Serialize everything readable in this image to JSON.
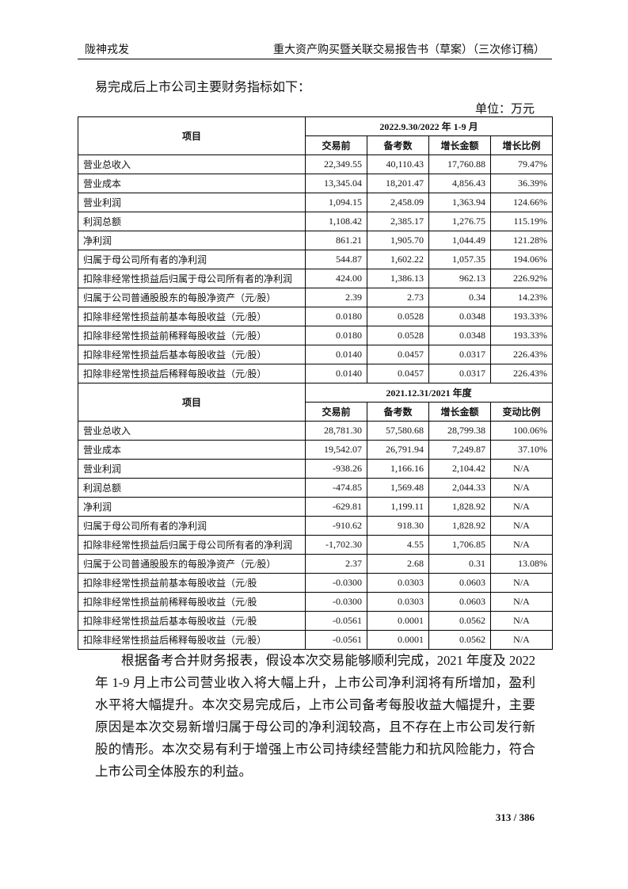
{
  "header": {
    "left": "陇神戎发",
    "right": "重大资产购买暨关联交易报告书（草案）（三次修订稿）"
  },
  "intro": "易完成后上市公司主要财务指标如下：",
  "unit": "单位：万元",
  "tables": [
    {
      "item_header": "项目",
      "period": "2022.9.30/2022 年 1-9 月",
      "columns": [
        "交易前",
        "备考数",
        "增长金额",
        "增长比例"
      ],
      "rows": [
        [
          "营业总收入",
          "22,349.55",
          "40,110.43",
          "17,760.88",
          "79.47%"
        ],
        [
          "营业成本",
          "13,345.04",
          "18,201.47",
          "4,856.43",
          "36.39%"
        ],
        [
          "营业利润",
          "1,094.15",
          "2,458.09",
          "1,363.94",
          "124.66%"
        ],
        [
          "利润总额",
          "1,108.42",
          "2,385.17",
          "1,276.75",
          "115.19%"
        ],
        [
          "净利润",
          "861.21",
          "1,905.70",
          "1,044.49",
          "121.28%"
        ],
        [
          "归属于母公司所有者的净利润",
          "544.87",
          "1,602.22",
          "1,057.35",
          "194.06%"
        ],
        [
          "扣除非经常性损益后归属于母公司所有者的净利润",
          "424.00",
          "1,386.13",
          "962.13",
          "226.92%"
        ],
        [
          "归属于公司普通股股东的每股净资产（元/股）",
          "2.39",
          "2.73",
          "0.34",
          "14.23%"
        ],
        [
          "扣除非经常性损益前基本每股收益（元/股）",
          "0.0180",
          "0.0528",
          "0.0348",
          "193.33%"
        ],
        [
          "扣除非经常性损益前稀释每股收益（元/股）",
          "0.0180",
          "0.0528",
          "0.0348",
          "193.33%"
        ],
        [
          "扣除非经常性损益后基本每股收益（元/股）",
          "0.0140",
          "0.0457",
          "0.0317",
          "226.43%"
        ],
        [
          "扣除非经常性损益后稀释每股收益（元/股）",
          "0.0140",
          "0.0457",
          "0.0317",
          "226.43%"
        ]
      ]
    },
    {
      "item_header": "项目",
      "period": "2021.12.31/2021 年度",
      "columns": [
        "交易前",
        "备考数",
        "增长金额",
        "变动比例"
      ],
      "rows": [
        [
          "营业总收入",
          "28,781.30",
          "57,580.68",
          "28,799.38",
          "100.06%"
        ],
        [
          "营业成本",
          "19,542.07",
          "26,791.94",
          "7,249.87",
          "37.10%"
        ],
        [
          "营业利润",
          "-938.26",
          "1,166.16",
          "2,104.42",
          "N/A"
        ],
        [
          "利润总额",
          "-474.85",
          "1,569.48",
          "2,044.33",
          "N/A"
        ],
        [
          "净利润",
          "-629.81",
          "1,199.11",
          "1,828.92",
          "N/A"
        ],
        [
          "归属于母公司所有者的净利润",
          "-910.62",
          "918.30",
          "1,828.92",
          "N/A"
        ],
        [
          "扣除非经常性损益后归属于母公司所有者的净利润",
          "-1,702.30",
          "4.55",
          "1,706.85",
          "N/A"
        ],
        [
          "归属于公司普通股股东的每股净资产（元/股）",
          "2.37",
          "2.68",
          "0.31",
          "13.08%"
        ],
        [
          "扣除非经常性损益前基本每股收益（元/股",
          "-0.0300",
          "0.0303",
          "0.0603",
          "N/A"
        ],
        [
          "扣除非经常性损益前稀释每股收益（元/股",
          "-0.0300",
          "0.0303",
          "0.0603",
          "N/A"
        ],
        [
          "扣除非经常性损益后基本每股收益（元/股",
          "-0.0561",
          "0.0001",
          "0.0562",
          "N/A"
        ],
        [
          "扣除非经常性损益后稀释每股收益（元/股）",
          "-0.0561",
          "0.0001",
          "0.0562",
          "N/A"
        ]
      ]
    }
  ],
  "paragraph": "根据备考合并财务报表，假设本次交易能够顺利完成，2021 年度及 2022 年 1-9 月上市公司营业收入将大幅上升，上市公司净利润将有所增加，盈利水平将大幅提升。本次交易完成后，上市公司备考每股收益大幅提升，主要原因是本次交易新增归属于母公司的净利润较高，且不存在上市公司发行新股的情形。本次交易有利于增强上市公司持续经营能力和抗风险能力，符合上市公司全体股东的利益。",
  "page_number": "313 / 386"
}
